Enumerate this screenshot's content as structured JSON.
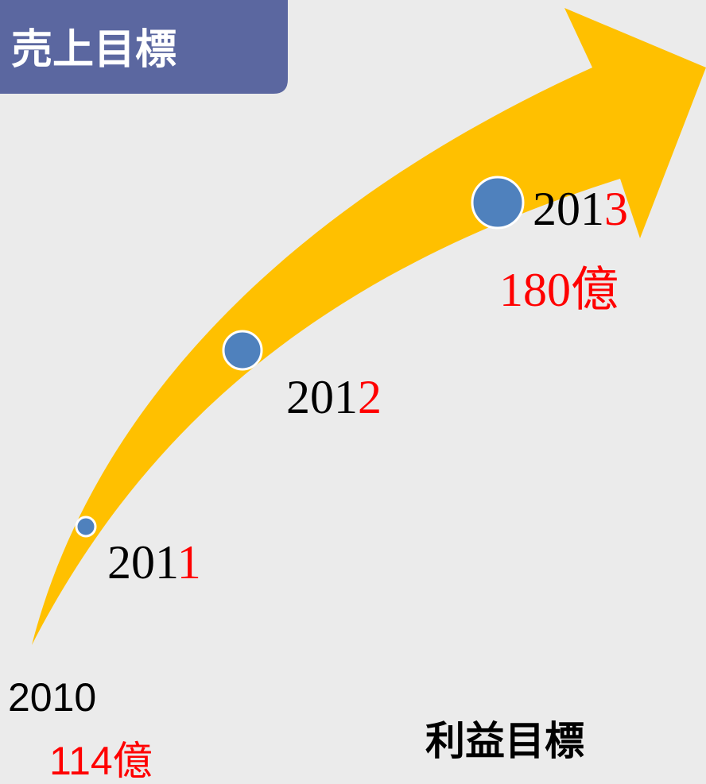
{
  "header": {
    "title": "売上目標"
  },
  "milestones": [
    {
      "year_prefix": "201",
      "year_suffix": "1"
    },
    {
      "year_prefix": "201",
      "year_suffix": "2"
    },
    {
      "year_prefix": "201",
      "year_suffix": "3",
      "amount": "180億"
    }
  ],
  "start": {
    "year": "2010",
    "amount": "114億"
  },
  "footer": {
    "label": "利益目標"
  }
}
